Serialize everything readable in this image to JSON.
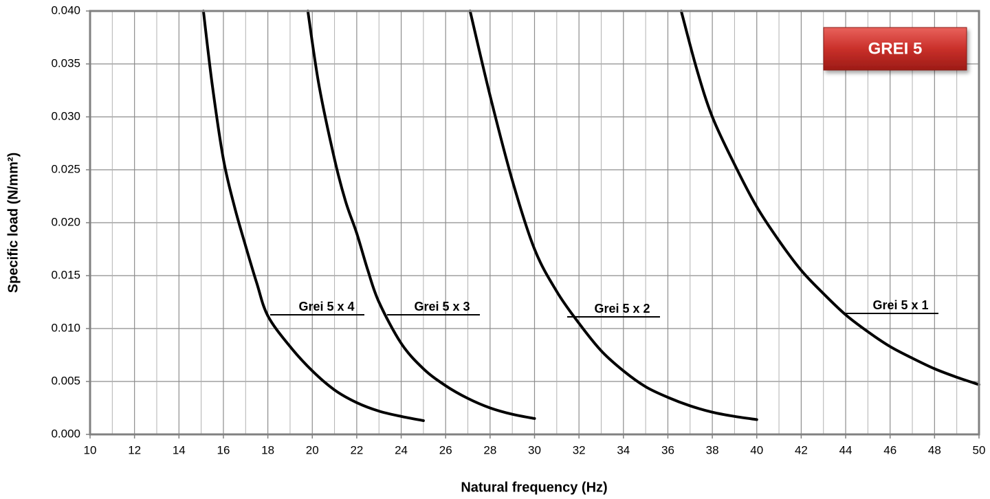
{
  "chart_data": {
    "type": "line",
    "badge": "GREI 5",
    "xlabel": "Natural frequency (Hz)",
    "ylabel": "Specific load (N/mm²)",
    "xlim": [
      10,
      50
    ],
    "ylim": [
      0,
      0.04
    ],
    "xticks": [
      10,
      12,
      14,
      16,
      18,
      20,
      22,
      24,
      26,
      28,
      30,
      32,
      34,
      36,
      38,
      40,
      42,
      44,
      46,
      48,
      50
    ],
    "yticks": [
      {
        "value": 0,
        "label": "0.000"
      },
      {
        "value": 0.005,
        "label": "0.005"
      },
      {
        "value": 0.01,
        "label": "0.010"
      },
      {
        "value": 0.015,
        "label": "0.015"
      },
      {
        "value": 0.02,
        "label": "0.020"
      },
      {
        "value": 0.025,
        "label": "0.025"
      },
      {
        "value": 0.03,
        "label": "0.030"
      },
      {
        "value": 0.035,
        "label": "0.035"
      },
      {
        "value": 0.04,
        "label": "0.040"
      }
    ],
    "grid": true,
    "series": [
      {
        "name": "Grei 5 x 4",
        "color": "#000000",
        "x": [
          15.1,
          15.5,
          16,
          16.5,
          17,
          17.5,
          18,
          19,
          20,
          21,
          22,
          23,
          24,
          25
        ],
        "values": [
          0.04,
          0.033,
          0.026,
          0.0215,
          0.0178,
          0.0143,
          0.0112,
          0.0083,
          0.006,
          0.0042,
          0.003,
          0.0022,
          0.0017,
          0.0013
        ]
      },
      {
        "name": "Grei 5 x 3",
        "color": "#000000",
        "x": [
          19.8,
          20.3,
          21,
          21.5,
          22,
          22.5,
          23,
          24,
          25,
          26,
          27,
          28,
          29,
          30
        ],
        "values": [
          0.04,
          0.033,
          0.026,
          0.022,
          0.019,
          0.0155,
          0.0125,
          0.0086,
          0.0062,
          0.0046,
          0.0034,
          0.0025,
          0.0019,
          0.0015
        ]
      },
      {
        "name": "Grei 5 x 2",
        "color": "#000000",
        "x": [
          27.1,
          28,
          29,
          30,
          31,
          32,
          33,
          34,
          35,
          36,
          37,
          38,
          39,
          40
        ],
        "values": [
          0.04,
          0.032,
          0.024,
          0.0175,
          0.0135,
          0.0105,
          0.0079,
          0.006,
          0.0045,
          0.0035,
          0.0027,
          0.0021,
          0.0017,
          0.0014
        ]
      },
      {
        "name": "Grei 5 x 1",
        "color": "#000000",
        "x": [
          36.6,
          37.3,
          38,
          39,
          40,
          41,
          42,
          43,
          44,
          45,
          46,
          47,
          48,
          49,
          50
        ],
        "values": [
          0.04,
          0.0345,
          0.03,
          0.0255,
          0.0215,
          0.0183,
          0.0155,
          0.0133,
          0.0113,
          0.0097,
          0.0083,
          0.0072,
          0.0062,
          0.0054,
          0.0047
        ]
      }
    ]
  }
}
